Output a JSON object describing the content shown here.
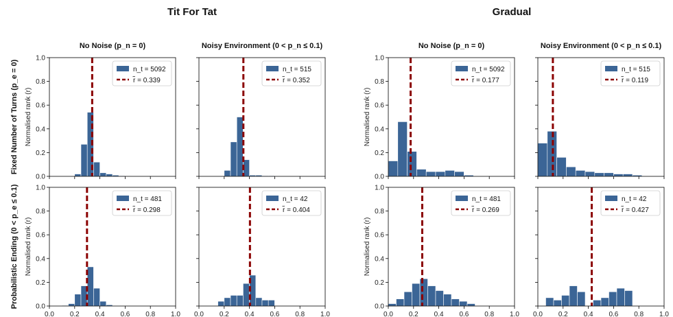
{
  "colors": {
    "bar": "#3b6596",
    "median_line": "#8b0000",
    "axis": "#000000"
  },
  "figure": {
    "groups": [
      {
        "title": "Tit For Tat"
      },
      {
        "title": "Gradual"
      }
    ],
    "col_titles": [
      "No Noise (p_n = 0)",
      "Noisy Environment (0 < p_n ≤ 0.1)"
    ],
    "row_titles": [
      "Fixed Number of Turns (p_e = 0)",
      "Probabilistic Ending (0 < p_e ≤ 0.1)"
    ],
    "ylabel": "Normalised rank (r)"
  },
  "chart_data": [
    {
      "type": "bar",
      "group": "Tit For Tat",
      "row": "Fixed Number of Turns (p_e = 0)",
      "col": "No Noise (p_n = 0)",
      "xlim": [
        0.0,
        1.0
      ],
      "ylim": [
        0.0,
        1.0
      ],
      "bin_width": 0.05,
      "bins": [
        0.1,
        0.15,
        0.2,
        0.25,
        0.3,
        0.35,
        0.4,
        0.45,
        0.5,
        0.55,
        0.6,
        0.65,
        0.7,
        0.75
      ],
      "values": [
        0.0,
        0.0,
        0.02,
        0.27,
        0.54,
        0.12,
        0.03,
        0.02,
        0.01,
        0.005,
        0.003,
        0.002,
        0.001,
        0.0
      ],
      "median": 0.339,
      "legend": [
        {
          "n_label": "n_t = 5092"
        },
        {
          "r_label": "r̃ = 0.339"
        }
      ]
    },
    {
      "type": "bar",
      "group": "Tit For Tat",
      "row": "Fixed Number of Turns (p_e = 0)",
      "col": "Noisy Environment (0 < p_n ≤ 0.1)",
      "xlim": [
        0.0,
        1.0
      ],
      "ylim": [
        0.0,
        1.0
      ],
      "bin_width": 0.05,
      "bins": [
        0.1,
        0.15,
        0.2,
        0.25,
        0.3,
        0.35,
        0.4,
        0.45,
        0.5,
        0.55,
        0.6,
        0.65
      ],
      "values": [
        0.0,
        0.0,
        0.05,
        0.29,
        0.5,
        0.14,
        0.01,
        0.01,
        0.005,
        0.005,
        0.0,
        0.0
      ],
      "median": 0.352,
      "legend": [
        {
          "n_label": "n_t = 515"
        },
        {
          "r_label": "r̃ = 0.352"
        }
      ]
    },
    {
      "type": "bar",
      "group": "Tit For Tat",
      "row": "Probabilistic Ending (0 < p_e ≤ 0.1)",
      "col": "No Noise (p_n = 0)",
      "xlim": [
        0.0,
        1.0
      ],
      "ylim": [
        0.0,
        1.0
      ],
      "bin_width": 0.05,
      "bins": [
        0.05,
        0.1,
        0.15,
        0.2,
        0.25,
        0.3,
        0.35,
        0.4,
        0.45,
        0.5
      ],
      "values": [
        0.0,
        0.005,
        0.02,
        0.1,
        0.17,
        0.33,
        0.15,
        0.04,
        0.01,
        0.0
      ],
      "median": 0.298,
      "legend": [
        {
          "n_label": "n_t = 481"
        },
        {
          "r_label": "r̃ = 0.298"
        }
      ]
    },
    {
      "type": "bar",
      "group": "Tit For Tat",
      "row": "Probabilistic Ending (0 < p_e ≤ 0.1)",
      "col": "Noisy Environment (0 < p_n ≤ 0.1)",
      "xlim": [
        0.0,
        1.0
      ],
      "ylim": [
        0.0,
        1.0
      ],
      "bin_width": 0.05,
      "bins": [
        0.1,
        0.15,
        0.2,
        0.25,
        0.3,
        0.35,
        0.4,
        0.45,
        0.5,
        0.55,
        0.6
      ],
      "values": [
        0.0,
        0.04,
        0.07,
        0.09,
        0.09,
        0.19,
        0.26,
        0.07,
        0.05,
        0.05,
        0.0
      ],
      "median": 0.404,
      "legend": [
        {
          "n_label": "n_t = 42"
        },
        {
          "r_label": "r̃ = 0.404"
        }
      ]
    },
    {
      "type": "bar",
      "group": "Gradual",
      "row": "Fixed Number of Turns (p_e = 0)",
      "col": "No Noise (p_n = 0)",
      "xlim": [
        0.0,
        1.0
      ],
      "ylim": [
        0.0,
        1.0
      ],
      "bin_width": 0.075,
      "bins": [
        0.0,
        0.075,
        0.15,
        0.225,
        0.3,
        0.375,
        0.45,
        0.525,
        0.6,
        0.675,
        0.75
      ],
      "values": [
        0.13,
        0.46,
        0.21,
        0.06,
        0.04,
        0.04,
        0.05,
        0.04,
        0.01,
        0.0,
        0.0
      ],
      "median": 0.177,
      "legend": [
        {
          "n_label": "n_t = 5092"
        },
        {
          "r_label": "r̃ = 0.177"
        }
      ]
    },
    {
      "type": "bar",
      "group": "Gradual",
      "row": "Fixed Number of Turns (p_e = 0)",
      "col": "Noisy Environment (0 < p_n ≤ 0.1)",
      "xlim": [
        0.0,
        1.0
      ],
      "ylim": [
        0.0,
        1.0
      ],
      "bin_width": 0.075,
      "bins": [
        0.0,
        0.075,
        0.15,
        0.225,
        0.3,
        0.375,
        0.45,
        0.525,
        0.6,
        0.675,
        0.75,
        0.825
      ],
      "values": [
        0.28,
        0.38,
        0.16,
        0.08,
        0.05,
        0.04,
        0.03,
        0.03,
        0.02,
        0.02,
        0.01,
        0.0
      ],
      "median": 0.119,
      "legend": [
        {
          "n_label": "n_t = 515"
        },
        {
          "r_label": "r̃ = 0.119"
        }
      ]
    },
    {
      "type": "bar",
      "group": "Gradual",
      "row": "Probabilistic Ending (0 < p_e ≤ 0.1)",
      "col": "No Noise (p_n = 0)",
      "xlim": [
        0.0,
        1.0
      ],
      "ylim": [
        0.0,
        1.0
      ],
      "bin_width": 0.0625,
      "bins": [
        0.0,
        0.0625,
        0.125,
        0.1875,
        0.25,
        0.3125,
        0.375,
        0.4375,
        0.5,
        0.5625,
        0.625
      ],
      "values": [
        0.02,
        0.06,
        0.12,
        0.19,
        0.23,
        0.17,
        0.13,
        0.1,
        0.06,
        0.04,
        0.02
      ],
      "median": 0.269,
      "legend": [
        {
          "n_label": "n_t = 481"
        },
        {
          "r_label": "r̃ = 0.269"
        }
      ]
    },
    {
      "type": "bar",
      "group": "Gradual",
      "row": "Probabilistic Ending (0 < p_e ≤ 0.1)",
      "col": "Noisy Environment (0 < p_n ≤ 0.1)",
      "xlim": [
        0.0,
        1.0
      ],
      "ylim": [
        0.0,
        1.0
      ],
      "bin_width": 0.0625,
      "bins": [
        0.0625,
        0.125,
        0.1875,
        0.25,
        0.3125,
        0.375,
        0.4375,
        0.5,
        0.5625,
        0.625,
        0.6875,
        0.75
      ],
      "values": [
        0.07,
        0.05,
        0.09,
        0.17,
        0.12,
        0.0,
        0.05,
        0.07,
        0.12,
        0.15,
        0.13,
        0.0
      ],
      "median": 0.427,
      "legend": [
        {
          "n_label": "n_t = 42"
        },
        {
          "r_label": "r̃ = 0.427"
        }
      ]
    }
  ]
}
